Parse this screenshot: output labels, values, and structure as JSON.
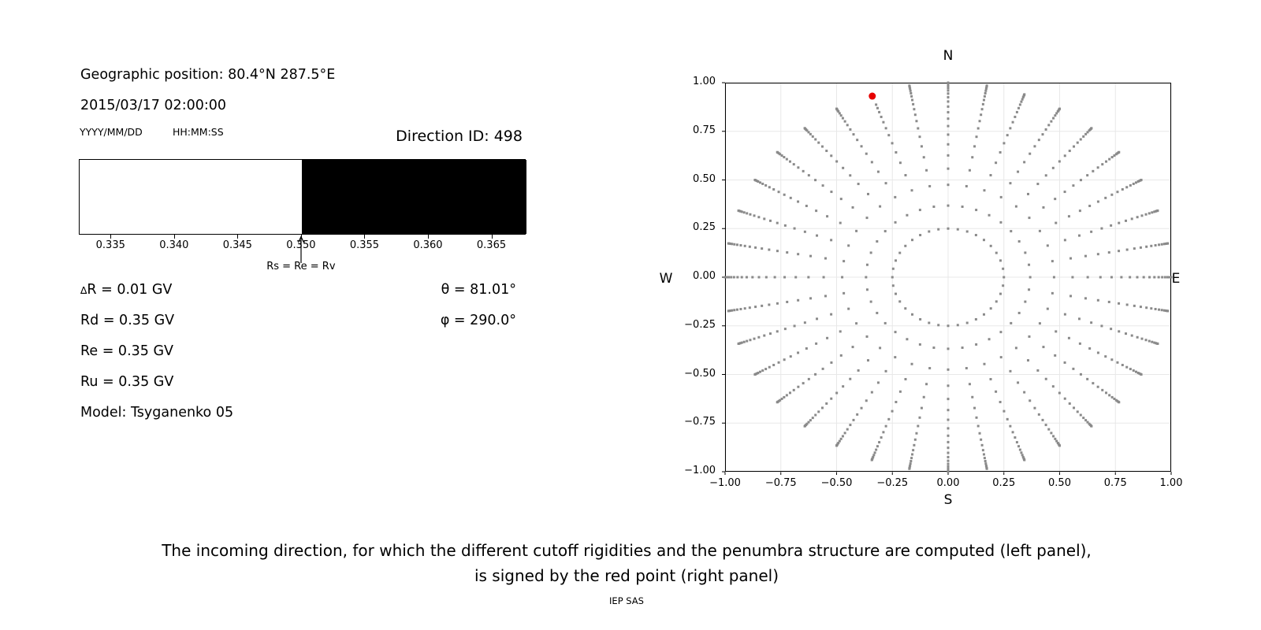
{
  "figure": {
    "header": {
      "geographic_position": "Geographic position: 80.4°N 287.5°E",
      "datetime": "2015/03/17 02:00:00",
      "date_format_label": "YYYY/MM/DD",
      "time_format_label": "HH:MM:SS",
      "direction_id": "Direction ID: 498"
    },
    "rigidity_values": {
      "delta_symbol": "∆",
      "delta_rest": "R = 0.01 GV",
      "rd": "Rd = 0.35 GV",
      "re": "Re = 0.35 GV",
      "ru": "Ru = 0.35 GV",
      "model": "Model: Tsyganenko 05",
      "theta": "θ = 81.01°",
      "phi": "φ = 290.0°"
    },
    "caption": {
      "line1": "The incoming direction, for which the different cutoff rigidities and the penumbra structure are computed (left panel),",
      "line2": "is signed by the red point (right panel)",
      "credit": "IEP SAS"
    }
  },
  "chart_data": [
    {
      "id": "penumbra",
      "type": "bar",
      "description": "Penumbra structure band: white = allowed rigidities, black = forbidden rigidities",
      "xlim": [
        0.3325,
        0.3677
      ],
      "xticks": [
        0.335,
        0.34,
        0.345,
        0.35,
        0.355,
        0.36,
        0.365
      ],
      "xtick_labels": [
        "0.335",
        "0.340",
        "0.345",
        "0.350",
        "0.355",
        "0.360",
        "0.365"
      ],
      "bands": [
        {
          "x0": 0.3325,
          "x1": 0.35,
          "color": "#ffffff",
          "meaning": "allowed"
        },
        {
          "x0": 0.35,
          "x1": 0.3677,
          "color": "#000000",
          "meaning": "forbidden"
        }
      ],
      "arrow": {
        "x": 0.35,
        "label": "Rs = Re = Rv"
      }
    },
    {
      "id": "directions",
      "type": "scatter",
      "description": "Incoming directions map; gray dots are rays of directions every 10° azimuth, red point marks direction ID 498",
      "compass": {
        "top": "N",
        "bottom": "S",
        "left": "W",
        "right": "E"
      },
      "xlim": [
        -1,
        1
      ],
      "ylim": [
        -1,
        1
      ],
      "grid": true,
      "grid_color": "#e8e8e8",
      "dot_color": "#8a8a8a",
      "xticks": [
        -1.0,
        -0.75,
        -0.5,
        -0.25,
        0.0,
        0.25,
        0.5,
        0.75,
        1.0
      ],
      "xtick_labels": [
        "−1.00",
        "−0.75",
        "−0.50",
        "−0.25",
        "0.00",
        "0.25",
        "0.50",
        "0.75",
        "1.00"
      ],
      "yticks": [
        1.0,
        0.75,
        0.5,
        0.25,
        0.0,
        -0.25,
        -0.5,
        -0.75,
        -1.0
      ],
      "ytick_labels": [
        "1.00",
        "0.75",
        "0.50",
        "0.25",
        "0.00",
        "−0.25",
        "−0.50",
        "−0.75",
        "−1.00"
      ],
      "pattern": {
        "azimuths_deg": {
          "start": 0,
          "step": 10,
          "count": 36
        },
        "inner_ring_r": 0.25,
        "ray_r_values": [
          0.368,
          0.475,
          0.558,
          0.626,
          0.683,
          0.733,
          0.777,
          0.815,
          0.848,
          0.877,
          0.903,
          0.925,
          0.944,
          0.96,
          0.973,
          0.984,
          0.991,
          0.997,
          1.0
        ]
      },
      "red_point": {
        "x": -0.34,
        "y": 0.931,
        "azimuth_deg": 340,
        "r": 0.99,
        "color": "#e60000",
        "covers_gray_above_r": 0.95
      }
    }
  ]
}
